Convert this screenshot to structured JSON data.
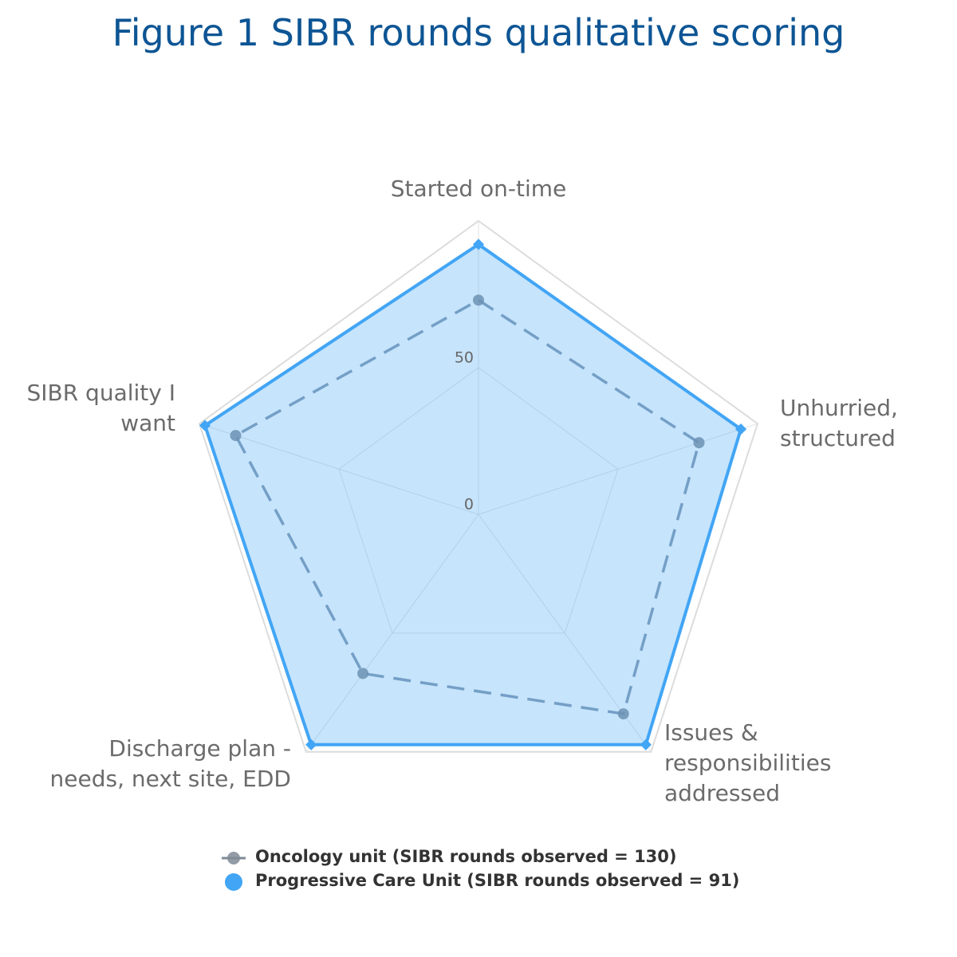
{
  "chart_data": {
    "type": "radar",
    "title": "Figure 1 SIBR rounds qualitative scoring",
    "categories": [
      "Started on-time",
      "Unhurried, structured",
      "Issues & responsibilities addressed",
      "Discharge plan - needs, next site, EDD",
      "SIBR quality I want"
    ],
    "series": [
      {
        "name": "Oncology unit (SIBR rounds observed = 130)",
        "color": "#7f8a96",
        "values": [
          73,
          79,
          84,
          67,
          87
        ]
      },
      {
        "name": "Progressive Care Unit (SIBR rounds observed = 91)",
        "color": "#42a5f5",
        "values": [
          92,
          94,
          97,
          97,
          98
        ]
      }
    ],
    "rlim": [
      0,
      100
    ],
    "rticks": [
      0,
      50
    ],
    "grid": true
  }
}
